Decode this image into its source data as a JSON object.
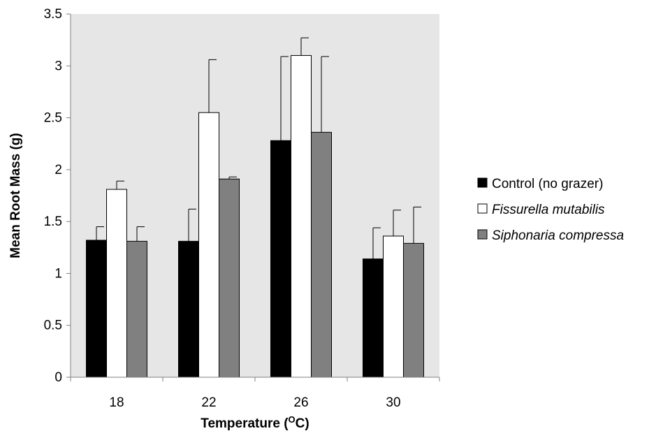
{
  "chart_data": {
    "type": "bar",
    "title": "",
    "xlabel": "Temperature (",
    "xlabel_sup": "O",
    "xlabel_suffix": "C)",
    "ylabel": "Mean Root Mass (g)",
    "ylim": [
      0,
      3.5
    ],
    "yticks": [
      "0",
      "0.5",
      "1",
      "1.5",
      "2",
      "2.5",
      "3",
      "3.5"
    ],
    "categories": [
      "18",
      "22",
      "26",
      "30"
    ],
    "grid": false,
    "legend_position": "right",
    "plot_background": "#e6e6e6",
    "series": [
      {
        "name": "Control (no grazer)",
        "italic": false,
        "color": "#000000",
        "values": [
          1.32,
          1.31,
          2.28,
          1.14
        ],
        "errors": [
          0.13,
          0.31,
          0.81,
          0.3
        ]
      },
      {
        "name": "Fissurella mutabilis",
        "italic": true,
        "color": "#ffffff",
        "values": [
          1.81,
          2.55,
          3.1,
          1.36
        ],
        "errors": [
          0.08,
          0.51,
          0.17,
          0.25
        ]
      },
      {
        "name": "Siphonaria compressa",
        "italic": true,
        "color": "#808080",
        "values": [
          1.31,
          1.91,
          2.36,
          1.29
        ],
        "errors": [
          0.14,
          0.02,
          0.73,
          0.35
        ]
      }
    ]
  }
}
